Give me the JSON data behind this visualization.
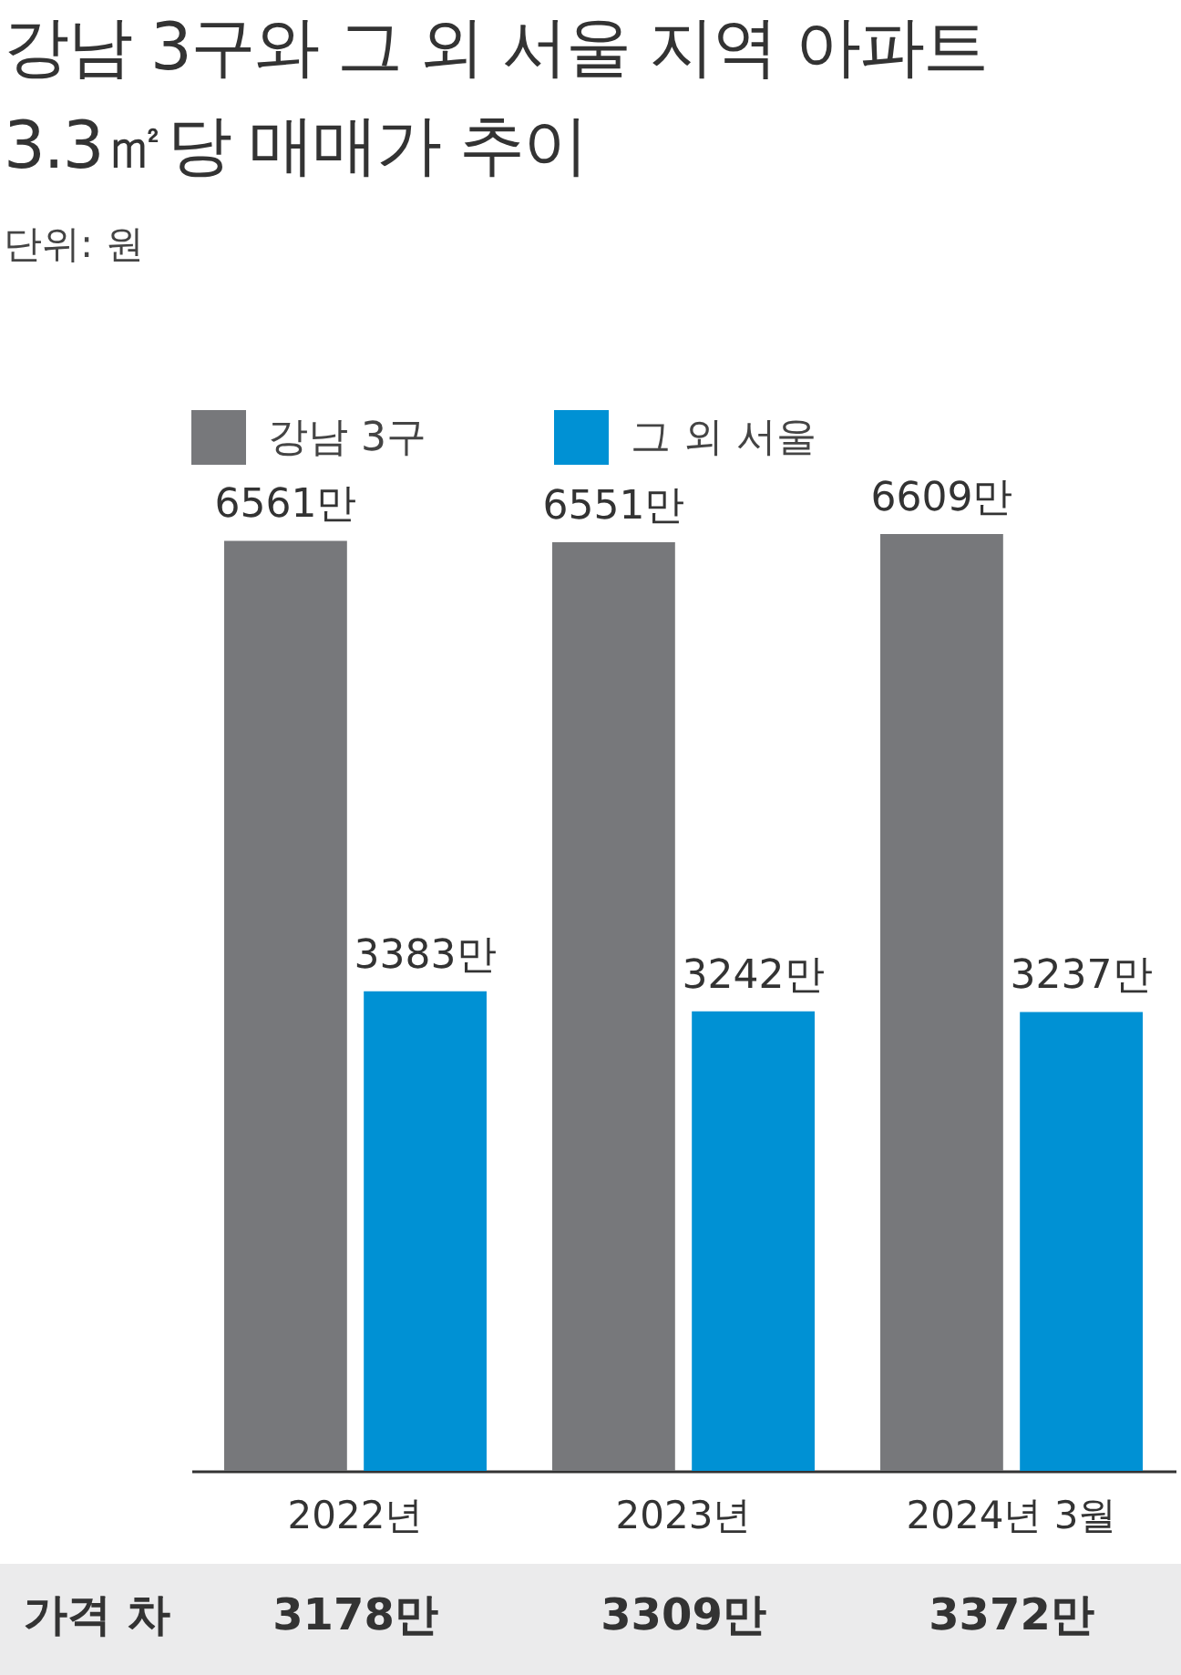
{
  "chart_data": {
    "type": "bar",
    "title": "강남 3구와 그 외 서울 지역 아파트 3.3㎡당 매매가 추이",
    "subtitle": "단위: 원",
    "categories": [
      "2022년",
      "2023년",
      "2024년 3월"
    ],
    "series": [
      {
        "name": "강남 3구",
        "color": "#77787b",
        "values": [
          6561,
          6551,
          6609
        ],
        "value_labels": [
          "6561만",
          "6551만",
          "6609만"
        ]
      },
      {
        "name": "그 외 서울",
        "color": "#0091d4",
        "values": [
          3383,
          3242,
          3237
        ],
        "value_labels": [
          "3383만",
          "3242만",
          "3237만"
        ]
      }
    ],
    "legend": "top left",
    "annotations": [
      "가격 차",
      "3178만",
      "3309만",
      "3372만"
    ]
  }
}
